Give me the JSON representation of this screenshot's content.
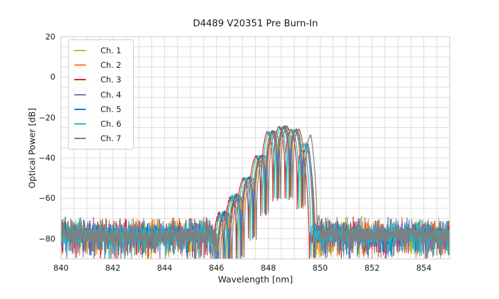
{
  "chart_data": {
    "type": "line",
    "title": "D4489 V20351 Pre Burn-In",
    "xlabel": "Wavelength [nm]",
    "ylabel": "Optical Power [dB]",
    "xlim": [
      840,
      855
    ],
    "ylim": [
      -90,
      20
    ],
    "xticks": [
      {
        "v": 840,
        "label": "840"
      },
      {
        "v": 842,
        "label": "842"
      },
      {
        "v": 844,
        "label": "844"
      },
      {
        "v": 846,
        "label": "846"
      },
      {
        "v": 848,
        "label": "848"
      },
      {
        "v": 850,
        "label": "850"
      },
      {
        "v": 852,
        "label": "852"
      },
      {
        "v": 854,
        "label": "854"
      }
    ],
    "yticks": [
      {
        "v": 20,
        "label": "20"
      },
      {
        "v": 0,
        "label": "0"
      },
      {
        "v": -20,
        "label": "−20"
      },
      {
        "v": -40,
        "label": "−40"
      },
      {
        "v": -60,
        "label": "−60"
      },
      {
        "v": -80,
        "label": "−80"
      }
    ],
    "grid": {
      "visible": true,
      "x_step_nm": 0.5,
      "y_step_db": 5,
      "color": "#dcdcdc",
      "border_color": "#c8c8c8"
    },
    "legend": {
      "position": "upper-left"
    },
    "noise_floor": {
      "mean_db": -78.5,
      "top_spikes_db": -70,
      "deep_dips_db": -91,
      "signal_gap_nm": [
        845.9,
        849.8
      ]
    },
    "signal": {
      "center_nm": 848.55,
      "lobe_spacing_nm": 0.47,
      "peak_db": -24.5,
      "notch_min_ratio": 0.018,
      "envelope_dx_db": [
        [
          -2.75,
          -80
        ],
        [
          -2.35,
          -68
        ],
        [
          -1.88,
          -59.5
        ],
        [
          -1.41,
          -50.5
        ],
        [
          -0.94,
          -40
        ],
        [
          -0.47,
          -27
        ],
        [
          0,
          -24.5
        ],
        [
          0.47,
          -26
        ],
        [
          0.94,
          -33
        ],
        [
          1.18,
          -55
        ],
        [
          1.26,
          -70
        ],
        [
          1.32,
          -82
        ]
      ]
    },
    "series": [
      {
        "name": "Ch. 1",
        "color": "#bcbd22",
        "offset_nm": 0.0,
        "peak_adj_db": -0.1,
        "right_adj_db": 0,
        "seed": 101,
        "dropout_nm": null
      },
      {
        "name": "Ch. 2",
        "color": "#ff7f0e",
        "offset_nm": 0.1,
        "peak_adj_db": 0.2,
        "right_adj_db": -5,
        "seed": 202,
        "dropout_nm": null
      },
      {
        "name": "Ch. 3",
        "color": "#d62728",
        "offset_nm": -0.14,
        "peak_adj_db": -0.3,
        "right_adj_db": -4,
        "seed": 303,
        "dropout_nm": null
      },
      {
        "name": "Ch. 4",
        "color": "#9467bd",
        "offset_nm": 0.03,
        "peak_adj_db": -0.5,
        "right_adj_db": -2,
        "seed": 404,
        "dropout_nm": null
      },
      {
        "name": "Ch. 5",
        "color": "#1f77b4",
        "offset_nm": 0.06,
        "peak_adj_db": 0.1,
        "right_adj_db": -1,
        "seed": 505,
        "dropout_nm": null
      },
      {
        "name": "Ch. 6",
        "color": "#17becf",
        "offset_nm": -0.08,
        "peak_adj_db": -0.4,
        "right_adj_db": 0,
        "seed": 606,
        "dropout_nm": null
      },
      {
        "name": "Ch. 7",
        "color": "#7f7f7f",
        "offset_nm": 0.16,
        "peak_adj_db": 0.0,
        "right_adj_db": 4,
        "seed": 707,
        "dropout_nm": 846.27
      }
    ]
  }
}
